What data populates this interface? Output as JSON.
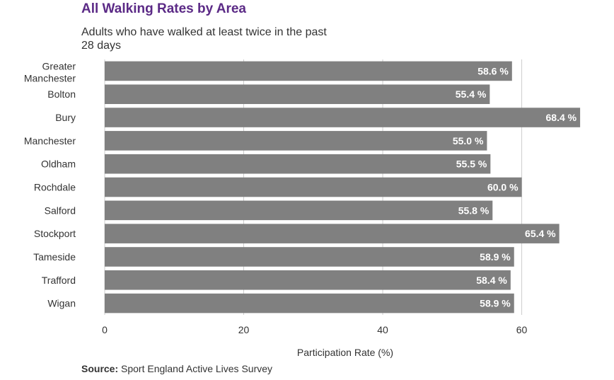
{
  "chart_data": {
    "type": "bar",
    "orientation": "horizontal",
    "title": "All Walking Rates by Area",
    "subtitle": "Adults who have walked at least twice in the past 28 days",
    "categories": [
      "Greater Manchester",
      "Bolton",
      "Bury",
      "Manchester",
      "Oldham",
      "Rochdale",
      "Salford",
      "Stockport",
      "Tameside",
      "Trafford",
      "Wigan"
    ],
    "values": [
      58.6,
      55.4,
      68.4,
      55.0,
      55.5,
      60.0,
      55.8,
      65.4,
      58.9,
      58.4,
      58.9
    ],
    "value_labels": [
      "58.6 %",
      "55.4 %",
      "68.4 %",
      "55.0 %",
      "55.5 %",
      "60.0 %",
      "55.8 %",
      "65.4 %",
      "58.9 %",
      "58.4 %",
      "58.9 %"
    ],
    "xlabel": "Participation Rate (%)",
    "ylabel": "",
    "xticks": [
      0,
      20,
      40,
      60
    ],
    "xlim": [
      0,
      69
    ],
    "grid": true,
    "bar_color": "#808080"
  },
  "colors": {
    "title": "#5b2a86",
    "bar": "#808080",
    "grid": "#cccccc",
    "text": "#333333",
    "bar_label": "#ffffff"
  },
  "source": {
    "label": "Source:",
    "text": "Sport England Active Lives Survey"
  }
}
